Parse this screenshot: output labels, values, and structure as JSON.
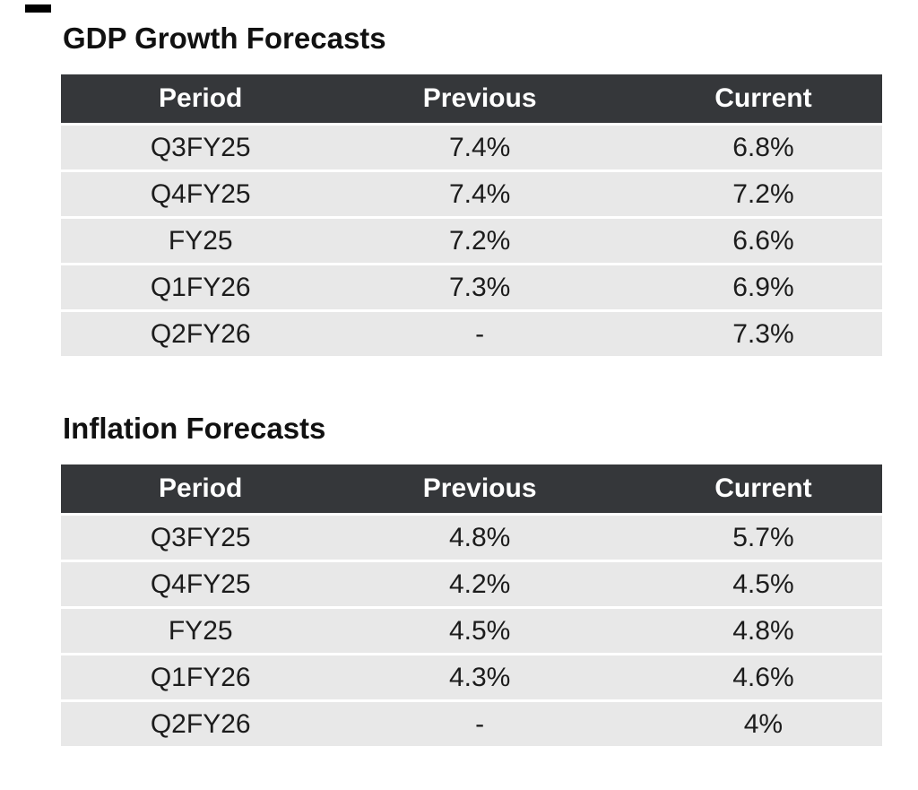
{
  "colors": {
    "header_bg": "#35373a",
    "header_text": "#ffffff",
    "row_bg": "#e8e8e8",
    "row_separator": "#ffffff",
    "data_text": "#1c1c1c",
    "title_text": "#111111",
    "corner_mark": "#000000"
  },
  "tables": [
    {
      "title": "GDP Growth Forecasts",
      "columns": [
        "Period",
        "Previous",
        "Current"
      ],
      "rows": [
        [
          "Q3FY25",
          "7.4%",
          "6.8%"
        ],
        [
          "Q4FY25",
          "7.4%",
          "7.2%"
        ],
        [
          "FY25",
          "7.2%",
          "6.6%"
        ],
        [
          "Q1FY26",
          "7.3%",
          "6.9%"
        ],
        [
          "Q2FY26",
          "-",
          "7.3%"
        ]
      ]
    },
    {
      "title": "Inflation Forecasts",
      "columns": [
        "Period",
        "Previous",
        "Current"
      ],
      "rows": [
        [
          "Q3FY25",
          "4.8%",
          "5.7%"
        ],
        [
          "Q4FY25",
          "4.2%",
          "4.5%"
        ],
        [
          "FY25",
          "4.5%",
          "4.8%"
        ],
        [
          "Q1FY26",
          "4.3%",
          "4.6%"
        ],
        [
          "Q2FY26",
          "-",
          "4%"
        ]
      ]
    }
  ]
}
